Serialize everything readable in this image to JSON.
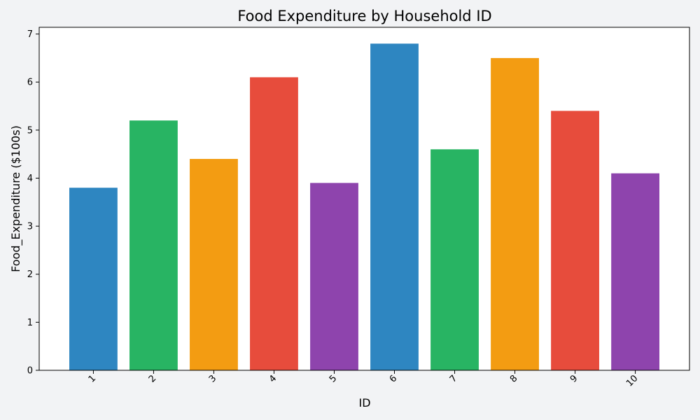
{
  "chart_data": {
    "type": "bar",
    "title": "Food Expenditure by Household ID",
    "xlabel": "ID",
    "ylabel": "Food_Expenditure ($100s)",
    "categories": [
      "1",
      "2",
      "3",
      "4",
      "5",
      "6",
      "7",
      "8",
      "9",
      "10"
    ],
    "values": [
      3.8,
      5.2,
      4.4,
      6.1,
      3.9,
      6.8,
      4.6,
      6.5,
      5.4,
      4.1
    ],
    "colors": [
      "#2e86c1",
      "#28b463",
      "#f39c12",
      "#e74c3c",
      "#8e44ad",
      "#2e86c1",
      "#28b463",
      "#f39c12",
      "#e74c3c",
      "#8e44ad"
    ],
    "ylim": [
      0,
      7.14
    ],
    "yticks": [
      0,
      1,
      2,
      3,
      4,
      5,
      6,
      7
    ],
    "grid": false,
    "legend": "none"
  }
}
